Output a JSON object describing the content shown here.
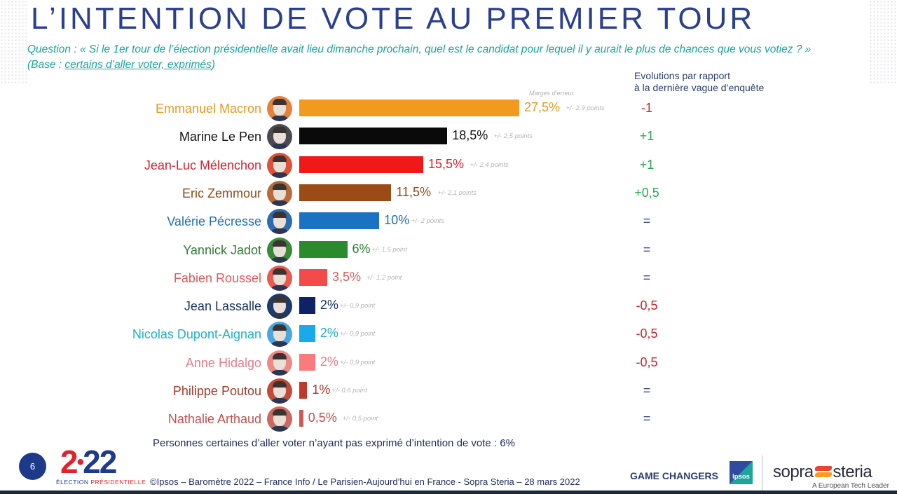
{
  "header": {
    "title": "L’INTENTION DE VOTE AU PREMIER TOUR",
    "question": "Question : « Si le 1er tour de l’élection présidentielle avait lieu dimanche prochain, quel est le candidat pour lequel il y aurait le plus de chances que vous votiez ? »",
    "base_prefix": "(Base : ",
    "base_link": "certains d’aller voter, exprimés",
    "base_suffix": ")"
  },
  "evolutions_header": {
    "line1": "Evolutions par rapport",
    "line2": "à la dernière vague d’enquête"
  },
  "margins_header": "Marges d’erreur",
  "colors": {
    "title": "#2b3f8f",
    "question": "#1aa39a",
    "positive": "#2aa653",
    "negative": "#d42027",
    "neutral": "#3a4a8a"
  },
  "chart_data": {
    "type": "bar",
    "orientation": "horizontal",
    "title": "L’INTENTION DE VOTE AU PREMIER TOUR",
    "unit": "%",
    "xlim": [
      0,
      30
    ],
    "categories": [
      "Emmanuel Macron",
      "Marine Le Pen",
      "Jean-Luc Mélenchon",
      "Eric Zemmour",
      "Valérie Pécresse",
      "Yannick Jadot",
      "Fabien Roussel",
      "Jean Lassalle",
      "Nicolas Dupont-Aignan",
      "Anne Hidalgo",
      "Philippe Poutou",
      "Nathalie Arthaud"
    ],
    "values": [
      27.5,
      18.5,
      15.5,
      11.5,
      10,
      6,
      3.5,
      2,
      2,
      2,
      1,
      0.5
    ],
    "candidates": [
      {
        "name": "Emmanuel Macron",
        "value": 27.5,
        "label": "27,5%",
        "margin": "+/- 2,9 points",
        "evolution": "-1",
        "trend": "negative",
        "color": "#f39a1e",
        "name_color": "#e8981f",
        "avatar_bg": "#e4813a"
      },
      {
        "name": "Marine Le Pen",
        "value": 18.5,
        "label": "18,5%",
        "margin": "+/- 2,5 points",
        "evolution": "+1",
        "trend": "positive",
        "color": "#0a0a0a",
        "name_color": "#111111",
        "avatar_bg": "#4a4a4f"
      },
      {
        "name": "Jean-Luc Mélenchon",
        "value": 15.5,
        "label": "15,5%",
        "margin": "+/- 2,4 points",
        "evolution": "+1",
        "trend": "positive",
        "color": "#f01818",
        "name_color": "#d9202a",
        "avatar_bg": "#e0503a"
      },
      {
        "name": "Eric Zemmour",
        "value": 11.5,
        "label": "11,5%",
        "margin": "+/- 2,1 points",
        "evolution": "+0,5",
        "trend": "positive",
        "color": "#9c4a16",
        "name_color": "#8c4a1a",
        "avatar_bg": "#b86a3a"
      },
      {
        "name": "Valérie Pécresse",
        "value": 10,
        "label": "10%",
        "margin": "+/- 2 points",
        "evolution": "=",
        "trend": "neutral",
        "color": "#1a72c4",
        "name_color": "#1f6fb3",
        "avatar_bg": "#2d6bb0"
      },
      {
        "name": "Yannick Jadot",
        "value": 6,
        "label": "6%",
        "margin": "+/- 1,5 point",
        "evolution": "=",
        "trend": "neutral",
        "color": "#2a8a2e",
        "name_color": "#2e7d32",
        "avatar_bg": "#3a8a3a"
      },
      {
        "name": "Fabien Roussel",
        "value": 3.5,
        "label": "3,5%",
        "margin": "+/- 1,2 point",
        "evolution": "=",
        "trend": "neutral",
        "color": "#f44a4a",
        "name_color": "#e05a5a",
        "avatar_bg": "#e85a52"
      },
      {
        "name": "Jean Lassalle",
        "value": 2,
        "label": "2%",
        "margin": "+/- 0,9 point",
        "evolution": "-0,5",
        "trend": "negative",
        "color": "#0f2266",
        "name_color": "#16305e",
        "avatar_bg": "#1e3a6a"
      },
      {
        "name": "Nicolas Dupont-Aignan",
        "value": 2,
        "label": "2%",
        "margin": "+/- 0,9 point",
        "evolution": "-0,5",
        "trend": "negative",
        "color": "#18aaea",
        "name_color": "#1fb0c8",
        "avatar_bg": "#4aa6e0"
      },
      {
        "name": "Anne Hidalgo",
        "value": 2,
        "label": "2%",
        "margin": "+/- 0,9 point",
        "evolution": "-0,5",
        "trend": "negative",
        "color": "#fb7a7e",
        "name_color": "#e67c88",
        "avatar_bg": "#ec8a8a"
      },
      {
        "name": "Philippe Poutou",
        "value": 1,
        "label": "1%",
        "margin": "+/- 0,6 point",
        "evolution": "=",
        "trend": "neutral",
        "color": "#c0392b",
        "name_color": "#a83a2a",
        "avatar_bg": "#c24a3a"
      },
      {
        "name": "Nathalie Arthaud",
        "value": 0.5,
        "label": "0,5%",
        "margin": "+/- 0,5 point",
        "evolution": "=",
        "trend": "neutral",
        "color": "#cc5a55",
        "name_color": "#c0504d",
        "avatar_bg": "#c86a62"
      }
    ]
  },
  "footnote": "Personnes certaines d’aller voter n’ayant pas exprimé d’intention de vote : 6%",
  "footer": {
    "page_number": "6",
    "logo_2": "2",
    "logo_dot": "•",
    "logo_22": "22",
    "logo_sub_1": "ÉLECTION ",
    "logo_sub_2": "PRÉSIDENTIELLE",
    "source": "©Ipsos – Baromètre 2022 – France Info / Le Parisien-Aujourd’hui en France - Sopra Steria – 28 mars 2022",
    "game_changers": "GAME CHANGERS",
    "ipsos": "Ipsos",
    "sopra_left": "sopra",
    "sopra_right": "steria",
    "tagline": "A European Tech Leader"
  }
}
